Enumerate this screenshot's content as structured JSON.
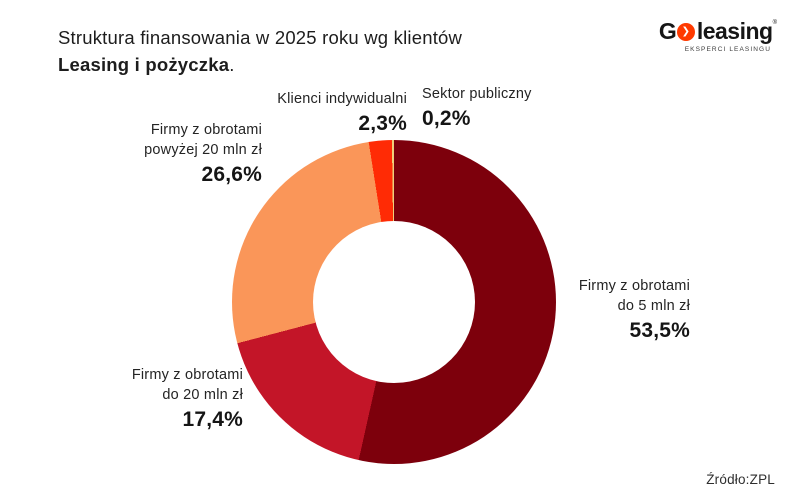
{
  "title": {
    "line1": "Struktura finansowania w 2025 roku wg klientów",
    "line2_bold": "Leasing i pożyczka",
    "line2_suffix": "."
  },
  "logo": {
    "g": "G",
    "chevron": "❯",
    "word": "leasing",
    "reg_mark": "®",
    "tagline": "EKSPERCI LEASINGU",
    "accent_color": "#FF3A00"
  },
  "source": "Źródło:ZPL",
  "chart_data": {
    "type": "pie",
    "subtype": "donut",
    "title": "Struktura finansowania w 2025 roku wg klientów — Leasing i pożyczka",
    "start_angle_deg": 0,
    "direction": "clockwise",
    "hole_ratio": 0.5,
    "legend_position": "labels-around",
    "segments": [
      {
        "label": "Firmy z obrotami do 5 mln zł",
        "value_pct": 53.5,
        "display": "53,5%",
        "color": "#7D000C"
      },
      {
        "label": "Firmy z obrotami do 20 mln zł",
        "value_pct": 17.4,
        "display": "17,4%",
        "color": "#C31528"
      },
      {
        "label": "Firmy z obrotami powyżej 20 mln zł",
        "value_pct": 26.6,
        "display": "26,6%",
        "color": "#FA9659"
      },
      {
        "label": "Klienci indywidualni",
        "value_pct": 2.3,
        "display": "2,3%",
        "color": "#FF2B05"
      },
      {
        "label": "Sektor publiczny",
        "value_pct": 0.2,
        "display": "0,2%",
        "color": "#EFD07A"
      }
    ]
  },
  "callouts": {
    "individual": {
      "line1": "Klienci indywidualni",
      "value": "2,3%"
    },
    "public": {
      "line1": "Sektor publiczny",
      "value": "0,2%"
    },
    "over20": {
      "line1": "Firmy z obrotami",
      "line2": "powyżej 20 mln zł",
      "value": "26,6%"
    },
    "to20": {
      "line1": "Firmy z obrotami",
      "line2": "do 20 mln zł",
      "value": "17,4%"
    },
    "to5": {
      "line1": "Firmy z obrotami",
      "line2": "do 5 mln zł",
      "value": "53,5%"
    }
  }
}
